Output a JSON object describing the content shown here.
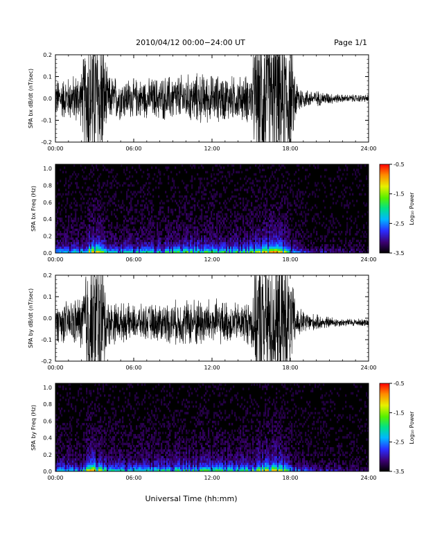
{
  "header": {
    "title": "2010/04/12  00:00−24:00 UT",
    "page": "Page 1/1"
  },
  "footer": {
    "xlabel": "Universal Time (hh:mm)"
  },
  "colorbar": {
    "label": "Log₁₀ Power",
    "ticks": [
      "-0.5",
      "-1.5",
      "-2.5",
      "-3.5"
    ],
    "range": [
      -3.5,
      -0.5
    ]
  },
  "chart_data": [
    {
      "type": "line",
      "ylabel": "SPA bx dB/dt (nT/sec)",
      "x_ticks": [
        "00:00",
        "06:00",
        "12:00",
        "18:00",
        "24:00"
      ],
      "y_ticks": [
        "0.2",
        "0.1",
        "0.0",
        "-0.1",
        "-0.2"
      ],
      "xlim": [
        0,
        24
      ],
      "ylim": [
        -0.2,
        0.2
      ],
      "envelope": {
        "hours": [
          0,
          1,
          2,
          2.5,
          3.5,
          4,
          5,
          6,
          7,
          8,
          9,
          10,
          11,
          12,
          13,
          14,
          15,
          15.5,
          16,
          17,
          17.5,
          18,
          18.5,
          19,
          20,
          21,
          22,
          23,
          24
        ],
        "amplitude": [
          0.1,
          0.11,
          0.14,
          0.4,
          0.4,
          0.12,
          0.11,
          0.1,
          0.1,
          0.11,
          0.12,
          0.12,
          0.13,
          0.12,
          0.12,
          0.11,
          0.13,
          0.4,
          0.4,
          0.4,
          0.4,
          0.3,
          0.1,
          0.05,
          0.04,
          0.03,
          0.02,
          0.02,
          0.02
        ],
        "offset": 0.0
      }
    },
    {
      "type": "heatmap",
      "ylabel": "SPA bx Freq (Hz)",
      "x_ticks": [
        "00:00",
        "06:00",
        "12:00",
        "18:00",
        "24:00"
      ],
      "y_ticks": [
        "1.0",
        "0.8",
        "0.6",
        "0.4",
        "0.2",
        "0.0"
      ],
      "xlim": [
        0,
        24
      ],
      "ylim": [
        0,
        1.05
      ],
      "activity": {
        "hours": [
          0,
          2,
          2.5,
          3,
          3.5,
          4,
          6,
          8,
          10,
          12,
          14,
          15.5,
          16.5,
          17,
          17.5,
          18,
          19,
          20,
          22,
          24
        ],
        "level": [
          0.4,
          0.5,
          0.9,
          1.0,
          0.8,
          0.45,
          0.5,
          0.55,
          0.65,
          0.6,
          0.6,
          0.75,
          1.0,
          0.95,
          0.85,
          0.45,
          0.25,
          0.2,
          0.15,
          0.1
        ]
      }
    },
    {
      "type": "line",
      "ylabel": "SPA by dB/dt (nT/sec)",
      "x_ticks": [
        "00:00",
        "06:00",
        "12:00",
        "18:00",
        "24:00"
      ],
      "y_ticks": [
        "0.2",
        "0.1",
        "0.0",
        "-0.1",
        "-0.2"
      ],
      "xlim": [
        0,
        24
      ],
      "ylim": [
        -0.2,
        0.2
      ],
      "envelope": {
        "hours": [
          0,
          1,
          2,
          2.5,
          3.5,
          4,
          5,
          6,
          7,
          8,
          9,
          10,
          11,
          12,
          13,
          14,
          15,
          15.5,
          16,
          17,
          17.5,
          18,
          18.5,
          19,
          20,
          21,
          22,
          23,
          24
        ],
        "amplitude": [
          0.1,
          0.11,
          0.14,
          0.4,
          0.4,
          0.12,
          0.1,
          0.09,
          0.09,
          0.1,
          0.11,
          0.12,
          0.13,
          0.12,
          0.11,
          0.1,
          0.12,
          0.4,
          0.4,
          0.4,
          0.4,
          0.25,
          0.09,
          0.06,
          0.04,
          0.03,
          0.02,
          0.02,
          0.02
        ],
        "offset": -0.02
      }
    },
    {
      "type": "heatmap",
      "ylabel": "SPA by Freq (Hz)",
      "x_ticks": [
        "00:00",
        "06:00",
        "12:00",
        "18:00",
        "24:00"
      ],
      "y_ticks": [
        "1.0",
        "0.8",
        "0.6",
        "0.4",
        "0.2",
        "0.0"
      ],
      "xlim": [
        0,
        24
      ],
      "ylim": [
        0,
        1.05
      ],
      "activity": {
        "hours": [
          0,
          2,
          2.5,
          3,
          3.5,
          4,
          6,
          8,
          10,
          12,
          14,
          15.5,
          16.5,
          17,
          17.5,
          18,
          19,
          20,
          22,
          24
        ],
        "level": [
          0.45,
          0.5,
          0.85,
          1.0,
          0.8,
          0.5,
          0.5,
          0.55,
          0.65,
          0.6,
          0.6,
          0.75,
          0.95,
          0.9,
          0.8,
          0.45,
          0.3,
          0.25,
          0.18,
          0.12
        ]
      }
    }
  ]
}
